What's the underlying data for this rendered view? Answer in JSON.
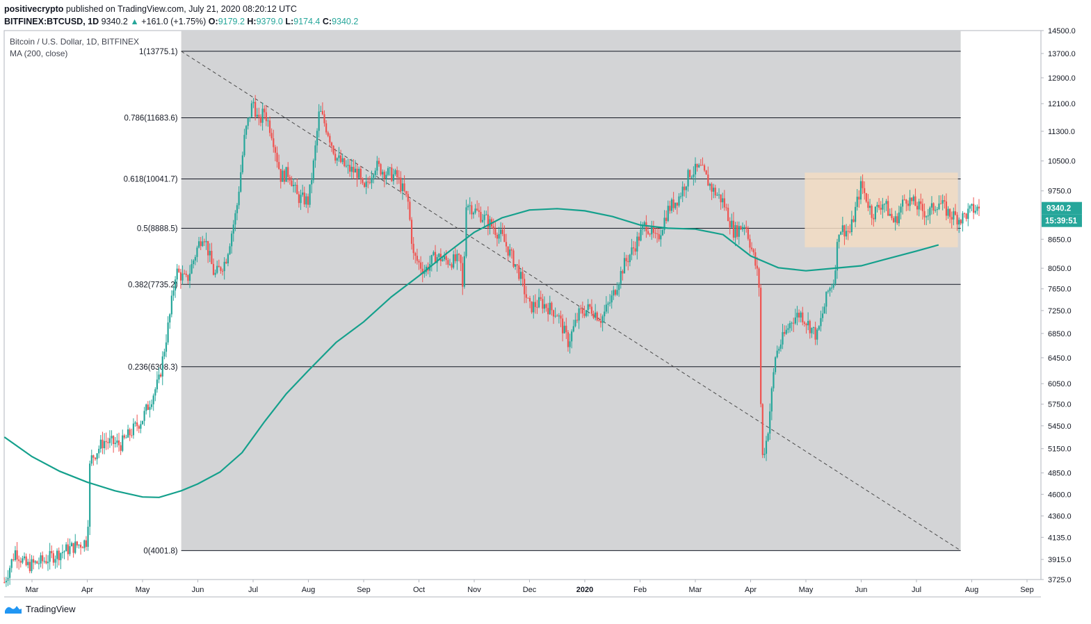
{
  "header": {
    "author": "positivecrypto",
    "published_text": "published on TradingView.com, July 21, 2020 08:20:12 UTC",
    "symbol": "BITFINEX:BTCUSD, 1D",
    "last_price": "9340.2",
    "change": "+161.0 (+1.75%)",
    "o_label": "O:",
    "o_value": "9179.2",
    "h_label": "H:",
    "h_value": "9379.0",
    "l_label": "L:",
    "l_value": "9174.4",
    "c_label": "C:",
    "c_value": "9340.2"
  },
  "legend": {
    "title": "Bitcoin / U.S. Dollar, 1D, BITFINEX",
    "indicator": "MA (200, close)"
  },
  "footer": {
    "brand": "TradingView"
  },
  "colors": {
    "up": "#26a69a",
    "down": "#ef5350",
    "ma": "#14a08c",
    "zone": "#d3d4d6",
    "range_box": "#f2dcc3",
    "axis_text": "#131722"
  },
  "chart_data": {
    "type": "candlestick",
    "title": "Bitcoin / U.S. Dollar, 1D, BITFINEX",
    "x_ticks": [
      "Mar",
      "Apr",
      "May",
      "Jun",
      "Jul",
      "Aug",
      "Sep",
      "Oct",
      "Nov",
      "Dec",
      "2020",
      "Feb",
      "Mar",
      "Apr",
      "May",
      "Jun",
      "Jul",
      "Aug",
      "Sep"
    ],
    "y_ticks": [
      3725,
      3915,
      4135,
      4360,
      4600,
      4850,
      5150,
      5450,
      5750,
      6050,
      6450,
      6850,
      7250,
      7650,
      8050,
      8650,
      9340.2,
      9750,
      10500,
      11300,
      12100,
      12900,
      13700,
      14500
    ],
    "y_tick_labels": [
      "3725.0",
      "3915.0",
      "4135.0",
      "4360.0",
      "4600.0",
      "4850.0",
      "5150.0",
      "5450.0",
      "5750.0",
      "6050.0",
      "6450.0",
      "6850.0",
      "7250.0",
      "7650.0",
      "8050.0",
      "8650.0",
      "9340.2",
      "9750.0",
      "10500.0",
      "11300.0",
      "12100.0",
      "12900.0",
      "13700.0",
      "14500.0"
    ],
    "y_scale": "log",
    "ylim": [
      3725,
      14500
    ],
    "price_label": "9340.2",
    "countdown_label": "15:39:51",
    "fib_levels": [
      {
        "label": "1(13775.1)",
        "value": 13775.1
      },
      {
        "label": "0.786(11683.6)",
        "value": 11683.6
      },
      {
        "label": "0.618(10041.7)",
        "value": 10041.7
      },
      {
        "label": "0.5(8888.5)",
        "value": 8888.5
      },
      {
        "label": "0.382(7735.2)",
        "value": 7735.2
      },
      {
        "label": "0.236(6308.3)",
        "value": 6308.3
      },
      {
        "label": "0(4001.8)",
        "value": 4001.8
      }
    ],
    "fib_start_month": 2.7,
    "fib_end_month": 16.8,
    "trendline": {
      "from": [
        2.7,
        13775.1
      ],
      "to": [
        16.8,
        4001.8
      ]
    },
    "range_box": {
      "from_month": 13.98,
      "to_month": 16.75,
      "top": 10200,
      "bottom": 8480
    },
    "ma_series_name": "MA (200, close)",
    "ma_points": [
      [
        -0.5,
        5300
      ],
      [
        0,
        5050
      ],
      [
        0.5,
        4870
      ],
      [
        1,
        4740
      ],
      [
        1.5,
        4640
      ],
      [
        2,
        4570
      ],
      [
        2.3,
        4565
      ],
      [
        2.7,
        4640
      ],
      [
        3,
        4720
      ],
      [
        3.4,
        4860
      ],
      [
        3.8,
        5100
      ],
      [
        4.2,
        5500
      ],
      [
        4.6,
        5900
      ],
      [
        5,
        6250
      ],
      [
        5.5,
        6700
      ],
      [
        6,
        7050
      ],
      [
        6.5,
        7500
      ],
      [
        7,
        7900
      ],
      [
        7.5,
        8350
      ],
      [
        8,
        8800
      ],
      [
        8.5,
        9120
      ],
      [
        9,
        9300
      ],
      [
        9.5,
        9330
      ],
      [
        10,
        9280
      ],
      [
        10.5,
        9150
      ],
      [
        11,
        8960
      ],
      [
        11.5,
        8890
      ],
      [
        12,
        8870
      ],
      [
        12.5,
        8750
      ],
      [
        13,
        8300
      ],
      [
        13.5,
        8060
      ],
      [
        14,
        8000
      ],
      [
        14.5,
        8050
      ],
      [
        15,
        8100
      ],
      [
        15.5,
        8250
      ],
      [
        16,
        8400
      ],
      [
        16.4,
        8530
      ]
    ],
    "price_keypoints": [
      [
        -0.5,
        3700
      ],
      [
        -0.3,
        4000
      ],
      [
        -0.1,
        3850
      ],
      [
        0.2,
        3900
      ],
      [
        0.5,
        3980
      ],
      [
        0.8,
        4050
      ],
      [
        1,
        4100
      ],
      [
        1.05,
        5000
      ],
      [
        1.3,
        5250
      ],
      [
        1.6,
        5200
      ],
      [
        2,
        5550
      ],
      [
        2.3,
        6100
      ],
      [
        2.5,
        7200
      ],
      [
        2.6,
        8000
      ],
      [
        2.8,
        7800
      ],
      [
        3,
        8500
      ],
      [
        3.1,
        8800
      ],
      [
        3.3,
        7900
      ],
      [
        3.5,
        8200
      ],
      [
        3.7,
        9300
      ],
      [
        3.85,
        11200
      ],
      [
        4,
        12200
      ],
      [
        4.1,
        11500
      ],
      [
        4.2,
        11900
      ],
      [
        4.35,
        11200
      ],
      [
        4.5,
        10100
      ],
      [
        4.65,
        10200
      ],
      [
        4.8,
        9600
      ],
      [
        5,
        9500
      ],
      [
        5.1,
        10500
      ],
      [
        5.2,
        11900
      ],
      [
        5.35,
        11300
      ],
      [
        5.5,
        10600
      ],
      [
        5.7,
        10300
      ],
      [
        5.9,
        10200
      ],
      [
        6,
        9700
      ],
      [
        6.2,
        10400
      ],
      [
        6.4,
        10200
      ],
      [
        6.6,
        10100
      ],
      [
        6.8,
        9500
      ],
      [
        6.9,
        8300
      ],
      [
        7.1,
        8000
      ],
      [
        7.3,
        8300
      ],
      [
        7.5,
        8200
      ],
      [
        7.75,
        8200
      ],
      [
        7.8,
        7500
      ],
      [
        7.85,
        9500
      ],
      [
        8,
        9300
      ],
      [
        8.2,
        9100
      ],
      [
        8.5,
        8700
      ],
      [
        8.8,
        8000
      ],
      [
        9,
        7300
      ],
      [
        9.2,
        7400
      ],
      [
        9.5,
        7200
      ],
      [
        9.7,
        6700
      ],
      [
        9.9,
        7200
      ],
      [
        10.1,
        7300
      ],
      [
        10.3,
        7100
      ],
      [
        10.5,
        7500
      ],
      [
        10.7,
        8100
      ],
      [
        10.9,
        8500
      ],
      [
        11.1,
        9000
      ],
      [
        11.3,
        8600
      ],
      [
        11.5,
        9300
      ],
      [
        11.7,
        9600
      ],
      [
        11.9,
        10200
      ],
      [
        12.1,
        10300
      ],
      [
        12.3,
        9800
      ],
      [
        12.5,
        9500
      ],
      [
        12.7,
        8800
      ],
      [
        12.9,
        9000
      ],
      [
        13.05,
        8300
      ],
      [
        13.15,
        7800
      ],
      [
        13.2,
        5000
      ],
      [
        13.3,
        5300
      ],
      [
        13.45,
        6500
      ],
      [
        13.6,
        6800
      ],
      [
        13.75,
        7100
      ],
      [
        13.9,
        7200
      ],
      [
        14.05,
        7000
      ],
      [
        14.2,
        6800
      ],
      [
        14.4,
        7600
      ],
      [
        14.5,
        7800
      ],
      [
        14.6,
        8900
      ],
      [
        14.8,
        8800
      ],
      [
        15,
        9900
      ],
      [
        15.2,
        9200
      ],
      [
        15.4,
        9500
      ],
      [
        15.6,
        9000
      ],
      [
        15.8,
        9600
      ],
      [
        16,
        9400
      ],
      [
        16.2,
        9200
      ],
      [
        16.4,
        9500
      ],
      [
        16.6,
        9200
      ],
      [
        16.8,
        9100
      ],
      [
        17,
        9300
      ],
      [
        17.15,
        9340
      ]
    ]
  }
}
